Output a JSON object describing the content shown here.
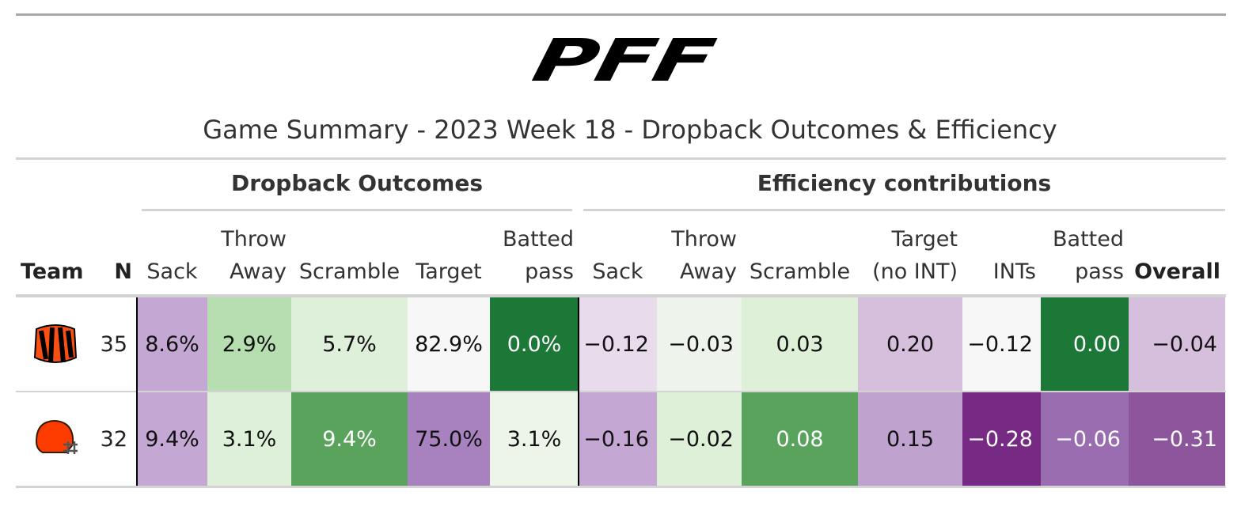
{
  "logo": "PFF",
  "title": "Game Summary - 2023 Week 18 - Dropback Outcomes & Efficiency",
  "spanners": [
    "Dropback Outcomes",
    "Efficiency contributions"
  ],
  "columns": [
    [
      "Team"
    ],
    [
      "N"
    ],
    [
      "Sack"
    ],
    [
      "Throw",
      "Away"
    ],
    [
      "Scramble"
    ],
    [
      "Target"
    ],
    [
      "Batted",
      "pass"
    ],
    [
      "Sack"
    ],
    [
      "Throw",
      "Away"
    ],
    [
      "Scramble"
    ],
    [
      "Target",
      "(no INT)"
    ],
    [
      "INTs"
    ],
    [
      "Batted",
      "pass"
    ],
    [
      "Overall"
    ]
  ],
  "rows": [
    {
      "n": 35,
      "cells": [
        "8.6%",
        "2.9%",
        "5.7%",
        "82.9%",
        "0.0%",
        "−0.12",
        "−0.03",
        "0.03",
        "0.20",
        "−0.12",
        "0.00",
        "−0.04"
      ],
      "colors": [
        "#c4a7d3",
        "#b7deb1",
        "#dff0da",
        "#f7f7f7",
        "#1b7837",
        "#e8dbec",
        "#eef4ec",
        "#def0d8",
        "#d6bfdd",
        "#f7f7f7",
        "#1b7837",
        "#d6bfdd"
      ]
    },
    {
      "n": 32,
      "cells": [
        "9.4%",
        "3.1%",
        "9.4%",
        "75.0%",
        "3.1%",
        "−0.16",
        "−0.02",
        "0.08",
        "0.15",
        "−0.28",
        "−0.06",
        "−0.31"
      ],
      "colors": [
        "#c4a7d3",
        "#dff0da",
        "#5aa35d",
        "#a882bf",
        "#edf5e9",
        "#c4a7d3",
        "#def0d8",
        "#5aa35d",
        "#c0a2cf",
        "#762a83",
        "#9a6cb0",
        "#8c559c"
      ]
    }
  ]
}
